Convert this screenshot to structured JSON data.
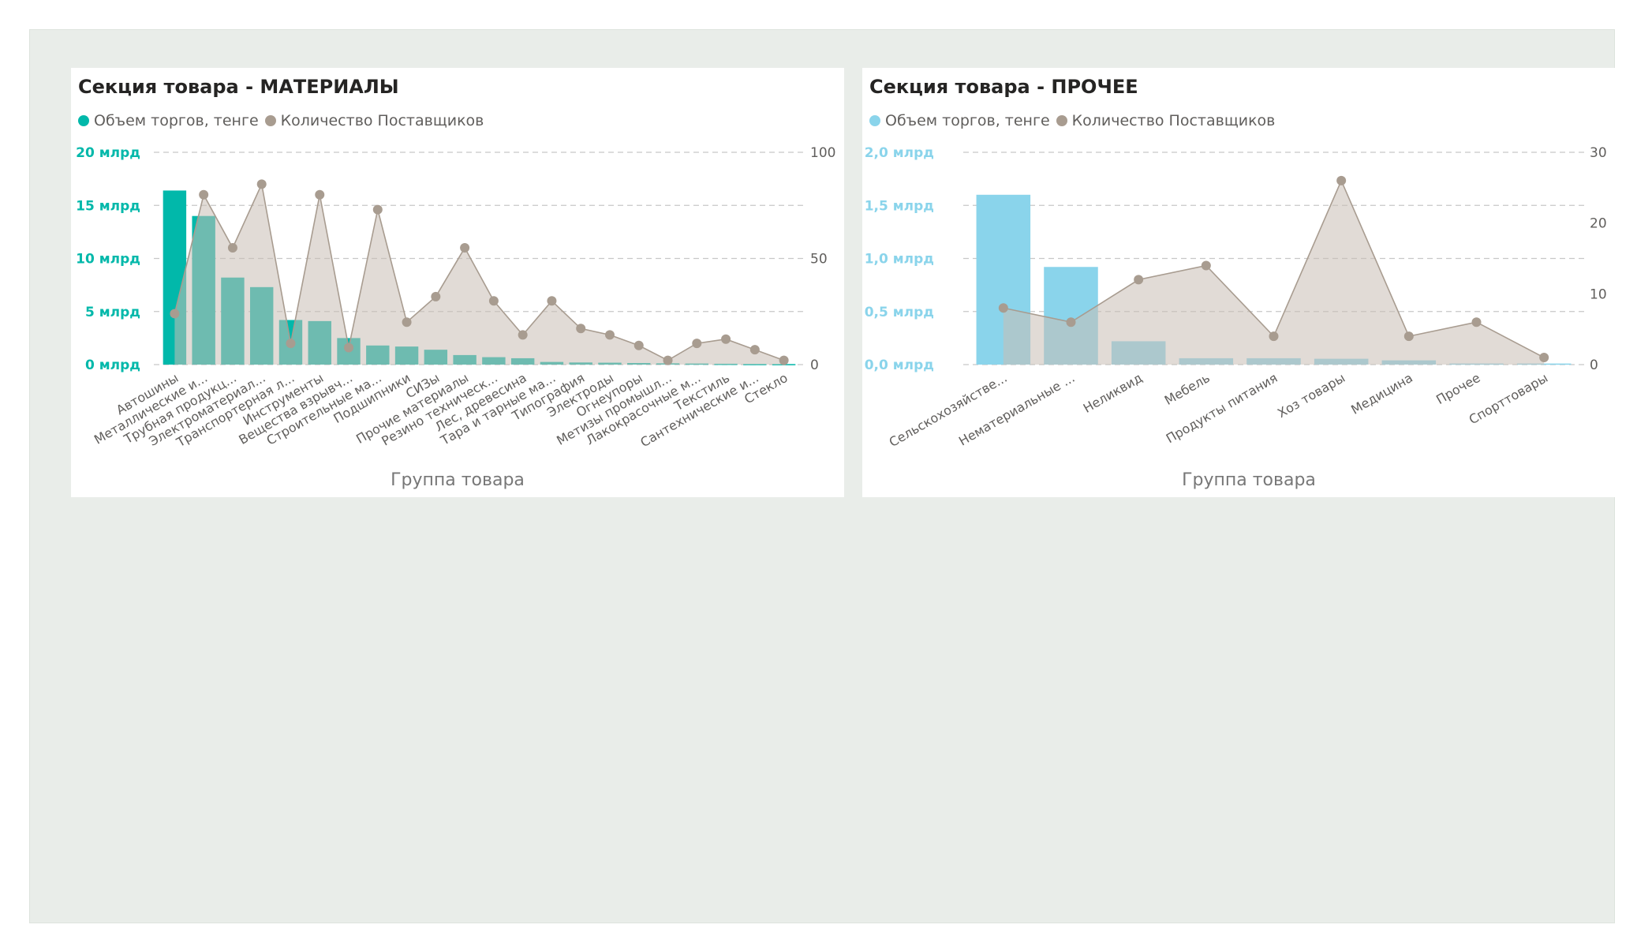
{
  "charts": [
    {
      "title": "Секция товара - МАТЕРИАЛЫ",
      "legend": [
        {
          "label": "Объем торгов, тенге",
          "color": "#01b8aa"
        },
        {
          "label": "Количество Поставщиков",
          "color": "#a89c90"
        }
      ],
      "xlabel": "Группа товара"
    },
    {
      "title": "Секция товара - ПРОЧЕЕ",
      "legend": [
        {
          "label": "Объем торгов, тенге",
          "color": "#8ad4eb"
        },
        {
          "label": "Количество Поставщиков",
          "color": "#a89c90"
        }
      ],
      "xlabel": "Группа товара"
    }
  ],
  "chart_data": [
    {
      "type": "bar",
      "combo": "bar + area line (dual axis)",
      "title": "Секция товара - МАТЕРИАЛЫ",
      "xlabel": "Группа товара",
      "bar_color": "#01b8aa",
      "categories": [
        "Автошины",
        "Металлические и...",
        "Трубная продукц...",
        "Электроматериал...",
        "Транспортерная л...",
        "Инструменты",
        "Вещества взрывч...",
        "Строительные ма...",
        "Подшипники",
        "СИЗы",
        "Прочие материалы",
        "Резино техническ...",
        "Лес, древесина",
        "Тара и тарные ма...",
        "Типография",
        "Электроды",
        "Огнеупоры",
        "Метизы промышл...",
        "Лакокрасочные м...",
        "Текстиль",
        "Сантехнические и...",
        "Стекло"
      ],
      "y_ticks": [
        "0 млрд",
        "5 млрд",
        "10 млрд",
        "15 млрд",
        "20 млрд"
      ],
      "y2_ticks": [
        "0",
        "50",
        "100"
      ],
      "ylim": [
        0,
        20
      ],
      "y2lim": [
        0,
        100
      ],
      "series": [
        {
          "name": "Объем торгов, тенге",
          "axis": "left",
          "kind": "bar",
          "values": [
            16.4,
            14.0,
            8.2,
            7.3,
            4.2,
            4.1,
            2.5,
            1.8,
            1.7,
            1.4,
            0.9,
            0.7,
            0.6,
            0.25,
            0.2,
            0.18,
            0.15,
            0.12,
            0.1,
            0.08,
            0.06,
            0.05
          ]
        },
        {
          "name": "Количество Поставщиков",
          "axis": "right",
          "kind": "area",
          "values": [
            24,
            80,
            55,
            85,
            10,
            80,
            8,
            73,
            20,
            32,
            55,
            30,
            14,
            30,
            17,
            14,
            9,
            2,
            10,
            12,
            7,
            2
          ]
        }
      ],
      "gridlines": true
    },
    {
      "type": "bar",
      "combo": "bar + area line (dual axis)",
      "title": "Секция товара - ПРОЧЕЕ",
      "xlabel": "Группа товара",
      "bar_color": "#8ad4eb",
      "categories": [
        "Сельскохозяйстве...",
        "Нематериальные ...",
        "Неликвид",
        "Мебель",
        "Продукты питания",
        "Хоз товары",
        "Медицина",
        "Прочее",
        "Спорттовары"
      ],
      "y_ticks": [
        "0,0 млрд",
        "0,5 млрд",
        "1,0 млрд",
        "1,5 млрд",
        "2,0 млрд"
      ],
      "y2_ticks": [
        "0",
        "10",
        "20",
        "30"
      ],
      "ylim": [
        0,
        2.0
      ],
      "y2lim": [
        0,
        30
      ],
      "series": [
        {
          "name": "Объем торгов, тенге",
          "axis": "left",
          "kind": "bar",
          "values": [
            1.6,
            0.92,
            0.22,
            0.06,
            0.06,
            0.055,
            0.04,
            0.01,
            0.01
          ]
        },
        {
          "name": "Количество Поставщиков",
          "axis": "right",
          "kind": "area",
          "values": [
            8,
            6,
            12,
            14,
            4,
            26,
            4,
            6,
            1
          ]
        }
      ],
      "gridlines": true
    }
  ]
}
